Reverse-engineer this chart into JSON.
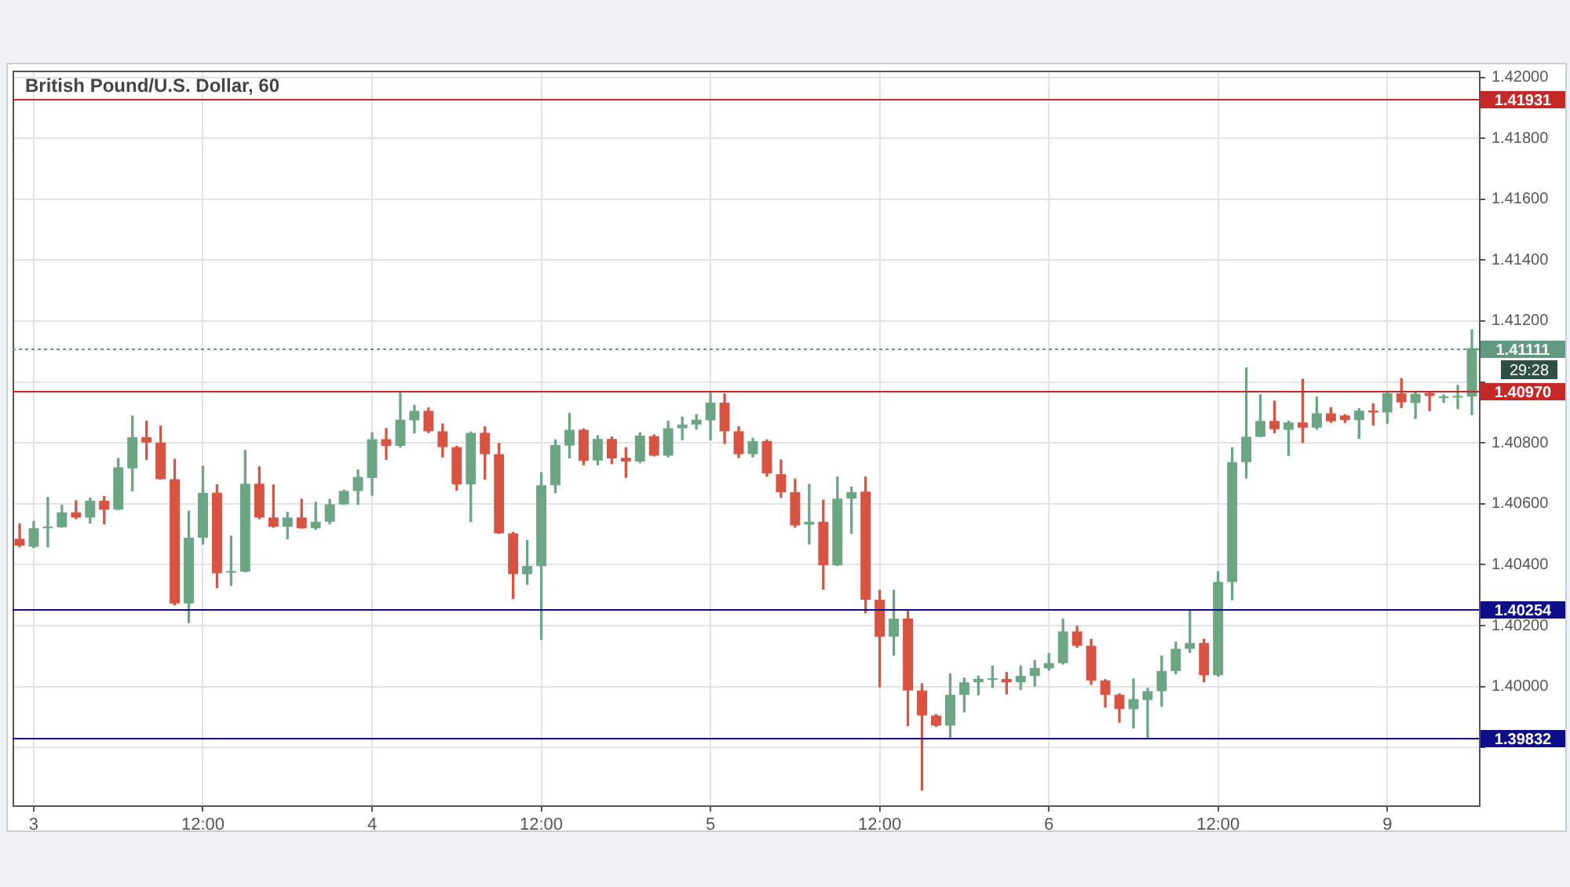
{
  "chart_data": {
    "type": "candlestick",
    "title": "British Pound/U.S. Dollar, 60",
    "categories": [
      null,
      "3",
      null,
      null,
      null,
      null,
      null,
      null,
      null,
      null,
      null,
      null,
      null,
      "12:00",
      null,
      null,
      null,
      null,
      null,
      null,
      null,
      null,
      null,
      null,
      null,
      "4",
      null,
      null,
      null,
      null,
      null,
      null,
      null,
      null,
      null,
      null,
      null,
      "12:00",
      null,
      null,
      null,
      null,
      null,
      null,
      null,
      null,
      null,
      null,
      null,
      "5",
      null,
      null,
      null,
      null,
      null,
      null,
      null,
      null,
      null,
      null,
      null,
      "12:00",
      null,
      null,
      null,
      null,
      null,
      null,
      null,
      null,
      null,
      null,
      null,
      "6",
      null,
      null,
      null,
      null,
      null,
      null,
      null,
      null,
      null,
      null,
      null,
      "12:00",
      null,
      null,
      null,
      null,
      null,
      null,
      null,
      null,
      null,
      null,
      null,
      "9",
      null,
      null,
      null,
      null,
      null,
      null
    ],
    "ohlc": [
      [
        1.40485,
        1.40534,
        1.40459,
        1.40463
      ],
      [
        1.40459,
        1.40542,
        1.40456,
        1.4052
      ],
      [
        1.4052,
        1.40621,
        1.40459,
        1.40525
      ],
      [
        1.40523,
        1.40595,
        1.40523,
        1.40572
      ],
      [
        1.40572,
        1.4061,
        1.40551,
        1.40555
      ],
      [
        1.40555,
        1.40619,
        1.40537,
        1.4061
      ],
      [
        1.4061,
        1.40624,
        1.40534,
        1.40581
      ],
      [
        1.40581,
        1.40749,
        1.40581,
        1.4072
      ],
      [
        1.40716,
        1.40888,
        1.40642,
        1.40819
      ],
      [
        1.40819,
        1.40871,
        1.40746,
        1.40801
      ],
      [
        1.40801,
        1.40855,
        1.40681,
        1.40681
      ],
      [
        1.40681,
        1.40746,
        1.40268,
        1.40273
      ],
      [
        1.40273,
        1.40576,
        1.4021,
        1.40489
      ],
      [
        1.40489,
        1.40723,
        1.40468,
        1.40636
      ],
      [
        1.40636,
        1.40662,
        1.40325,
        1.40372
      ],
      [
        1.40374,
        1.40494,
        1.40332,
        1.40379
      ],
      [
        1.40377,
        1.40775,
        1.40377,
        1.40666
      ],
      [
        1.40666,
        1.40721,
        1.40551,
        1.40555
      ],
      [
        1.40555,
        1.40662,
        1.40523,
        1.40525
      ],
      [
        1.40525,
        1.40572,
        1.40485,
        1.40555
      ],
      [
        1.40555,
        1.40615,
        1.4052,
        1.4052
      ],
      [
        1.4052,
        1.40605,
        1.40516,
        1.40541
      ],
      [
        1.40541,
        1.40615,
        1.40534,
        1.40598
      ],
      [
        1.40598,
        1.40645,
        1.40598,
        1.40642
      ],
      [
        1.40642,
        1.40711,
        1.40598,
        1.40688
      ],
      [
        1.40685,
        1.40833,
        1.40628,
        1.40812
      ],
      [
        1.40812,
        1.40847,
        1.40746,
        1.4079
      ],
      [
        1.4079,
        1.40967,
        1.40786,
        1.40876
      ],
      [
        1.40874,
        1.40923,
        1.40833,
        1.40905
      ],
      [
        1.40905,
        1.40915,
        1.40834,
        1.40838
      ],
      [
        1.40838,
        1.40862,
        1.40754,
        1.40786
      ],
      [
        1.40786,
        1.40789,
        1.40645,
        1.40664
      ],
      [
        1.40664,
        1.40836,
        1.40542,
        1.40833
      ],
      [
        1.40833,
        1.40853,
        1.40681,
        1.40763
      ],
      [
        1.40763,
        1.40798,
        1.40503,
        1.40503
      ],
      [
        1.40503,
        1.40506,
        1.40289,
        1.40369
      ],
      [
        1.40369,
        1.4048,
        1.40336,
        1.40396
      ],
      [
        1.40395,
        1.40702,
        1.40155,
        1.40661
      ],
      [
        1.40661,
        1.4081,
        1.40636,
        1.40793
      ],
      [
        1.40791,
        1.40897,
        1.40751,
        1.40843
      ],
      [
        1.40843,
        1.40846,
        1.40728,
        1.40741
      ],
      [
        1.40742,
        1.40824,
        1.40728,
        1.40813
      ],
      [
        1.40813,
        1.40819,
        1.40732,
        1.40749
      ],
      [
        1.40751,
        1.40784,
        1.40687,
        1.40739
      ],
      [
        1.40739,
        1.40833,
        1.40735,
        1.40824
      ],
      [
        1.40822,
        1.40826,
        1.40757,
        1.40758
      ],
      [
        1.40758,
        1.40871,
        1.40754,
        1.40848
      ],
      [
        1.40848,
        1.40885,
        1.4081,
        1.4086
      ],
      [
        1.4086,
        1.40893,
        1.40845,
        1.40876
      ],
      [
        1.40874,
        1.40963,
        1.4081,
        1.40932
      ],
      [
        1.40932,
        1.40961,
        1.40798,
        1.40838
      ],
      [
        1.40838,
        1.40853,
        1.40752,
        1.40763
      ],
      [
        1.40763,
        1.40815,
        1.40754,
        1.40806
      ],
      [
        1.40806,
        1.4081,
        1.4069,
        1.407
      ],
      [
        1.40697,
        1.40744,
        1.40621,
        1.40638
      ],
      [
        1.40638,
        1.40681,
        1.40523,
        1.40529
      ],
      [
        1.40532,
        1.40664,
        1.40468,
        1.40541
      ],
      [
        1.40541,
        1.40612,
        1.4032,
        1.40398
      ],
      [
        1.40398,
        1.40688,
        1.40398,
        1.40617
      ],
      [
        1.40617,
        1.40655,
        1.40503,
        1.40638
      ],
      [
        1.4064,
        1.40688,
        1.40242,
        1.40285
      ],
      [
        1.40285,
        1.40316,
        1.39999,
        1.40164
      ],
      [
        1.40164,
        1.40316,
        1.40103,
        1.40223
      ],
      [
        1.40223,
        1.40247,
        1.39872,
        1.39987
      ],
      [
        1.39987,
        1.40009,
        1.3966,
        1.39905
      ],
      [
        1.39905,
        1.39908,
        1.39869,
        1.39872
      ],
      [
        1.39872,
        1.40042,
        1.39834,
        1.39973
      ],
      [
        1.39973,
        1.40028,
        1.39917,
        1.40014
      ],
      [
        1.40014,
        1.40034,
        1.39973,
        1.40025
      ],
      [
        1.40022,
        1.40067,
        1.39997,
        1.40025
      ],
      [
        1.40025,
        1.40046,
        1.39976,
        1.40014
      ],
      [
        1.40014,
        1.40068,
        1.3999,
        1.40035
      ],
      [
        1.40035,
        1.40086,
        1.40002,
        1.40061
      ],
      [
        1.4006,
        1.40108,
        1.40054,
        1.40077
      ],
      [
        1.40077,
        1.40221,
        1.40074,
        1.40181
      ],
      [
        1.40181,
        1.40198,
        1.40129,
        1.40134
      ],
      [
        1.40134,
        1.40155,
        1.40007,
        1.4002
      ],
      [
        1.4002,
        1.40023,
        1.39933,
        1.39973
      ],
      [
        1.39973,
        1.39976,
        1.39883,
        1.39926
      ],
      [
        1.39926,
        1.40025,
        1.39864,
        1.39959
      ],
      [
        1.39956,
        1.39994,
        1.39828,
        1.39985
      ],
      [
        1.39985,
        1.401,
        1.39935,
        1.40051
      ],
      [
        1.40051,
        1.40146,
        1.40042,
        1.40124
      ],
      [
        1.40124,
        1.40251,
        1.40112,
        1.40143
      ],
      [
        1.40143,
        1.40155,
        1.40016,
        1.40037
      ],
      [
        1.40037,
        1.40377,
        1.40034,
        1.40343
      ],
      [
        1.40343,
        1.40784,
        1.40285,
        1.40737
      ],
      [
        1.40737,
        1.41046,
        1.40685,
        1.4082
      ],
      [
        1.4082,
        1.40958,
        1.4082,
        1.40872
      ],
      [
        1.40872,
        1.40937,
        1.40833,
        1.40845
      ],
      [
        1.40843,
        1.40872,
        1.40759,
        1.40867
      ],
      [
        1.40867,
        1.41009,
        1.40801,
        1.4085
      ],
      [
        1.4085,
        1.4095,
        1.40845,
        1.40897
      ],
      [
        1.40897,
        1.40916,
        1.40867,
        1.40871
      ],
      [
        1.4089,
        1.40893,
        1.40867,
        1.40875
      ],
      [
        1.40875,
        1.40912,
        1.40815,
        1.40906
      ],
      [
        1.40906,
        1.40928,
        1.40859,
        1.409
      ],
      [
        1.409,
        1.40968,
        1.40864,
        1.40963
      ],
      [
        1.40963,
        1.41011,
        1.40916,
        1.40933
      ],
      [
        1.40931,
        1.40966,
        1.4088,
        1.40961
      ],
      [
        1.40964,
        1.40966,
        1.40906,
        1.40954
      ],
      [
        1.40947,
        1.40958,
        1.40933,
        1.40952
      ],
      [
        1.40949,
        1.40989,
        1.40912,
        1.40952
      ],
      [
        1.40952,
        1.41171,
        1.40893,
        1.41111
      ]
    ],
    "colors": [
      "#d75442",
      "#6ba583",
      "#6ba583",
      "#6ba583",
      "#d75442",
      "#6ba583",
      "#d75442",
      "#6ba583",
      "#6ba583",
      "#d75442",
      "#d75442",
      "#d75442",
      "#6ba583",
      "#6ba583",
      "#d75442",
      "#6ba583",
      "#6ba583",
      "#d75442",
      "#d75442",
      "#6ba583",
      "#d75442",
      "#6ba583",
      "#6ba583",
      "#6ba583",
      "#6ba583",
      "#6ba583",
      "#d75442",
      "#6ba583",
      "#6ba583",
      "#d75442",
      "#d75442",
      "#d75442",
      "#6ba583",
      "#d75442",
      "#d75442",
      "#d75442",
      "#6ba583",
      "#6ba583",
      "#6ba583",
      "#6ba583",
      "#d75442",
      "#6ba583",
      "#d75442",
      "#d75442",
      "#6ba583",
      "#d75442",
      "#6ba583",
      "#6ba583",
      "#6ba583",
      "#6ba583",
      "#d75442",
      "#d75442",
      "#6ba583",
      "#d75442",
      "#d75442",
      "#d75442",
      "#6ba583",
      "#d75442",
      "#6ba583",
      "#6ba583",
      "#d75442",
      "#d75442",
      "#6ba583",
      "#d75442",
      "#d75442",
      "#d75442",
      "#6ba583",
      "#6ba583",
      "#6ba583",
      "#6ba583",
      "#d75442",
      "#6ba583",
      "#6ba583",
      "#6ba583",
      "#6ba583",
      "#d75442",
      "#d75442",
      "#d75442",
      "#d75442",
      "#6ba583",
      "#6ba583",
      "#6ba583",
      "#6ba583",
      "#6ba583",
      "#d75442",
      "#6ba583",
      "#6ba583",
      "#6ba583",
      "#6ba583",
      "#d75442",
      "#6ba583",
      "#d75442",
      "#6ba583",
      "#d75442",
      "#d75442",
      "#6ba583",
      "#d75442",
      "#6ba583",
      "#d75442",
      "#6ba583",
      "#d75442",
      "#6ba583",
      "#6ba583",
      "#6ba583"
    ],
    "ylim": [
      1.3961,
      1.42022
    ],
    "yticks": [
      {
        "value": 1.398,
        "label": null
      },
      {
        "value": 1.4,
        "label": "1.40000"
      },
      {
        "value": 1.402,
        "label": "1.40200"
      },
      {
        "value": 1.404,
        "label": "1.40400"
      },
      {
        "value": 1.406,
        "label": "1.40600"
      },
      {
        "value": 1.408,
        "label": "1.40800"
      },
      {
        "value": 1.41,
        "label": null
      },
      {
        "value": 1.412,
        "label": "1.41200"
      },
      {
        "value": 1.414,
        "label": "1.41400"
      },
      {
        "value": 1.416,
        "label": "1.41600"
      },
      {
        "value": 1.418,
        "label": "1.41800"
      },
      {
        "value": 1.42,
        "label": "1.42000"
      }
    ],
    "ref_lines": [
      {
        "axis": "y",
        "value": 1.41931,
        "label": "1.41931",
        "color": "#c62828"
      },
      {
        "axis": "y",
        "value": 1.4097,
        "label": "1.40970",
        "color": "#c62828"
      },
      {
        "axis": "y",
        "value": 1.40254,
        "label": "1.40254",
        "color": "#0d0d8a"
      },
      {
        "axis": "y",
        "value": 1.39832,
        "label": "1.39832",
        "color": "#0d0d8a"
      },
      {
        "axis": "y",
        "value": 1.41111,
        "label": "1.41111",
        "color": "#5f9a80",
        "line_style": "dotted"
      }
    ],
    "annotations": [
      "29:28"
    ],
    "grid": true,
    "legend": false
  }
}
